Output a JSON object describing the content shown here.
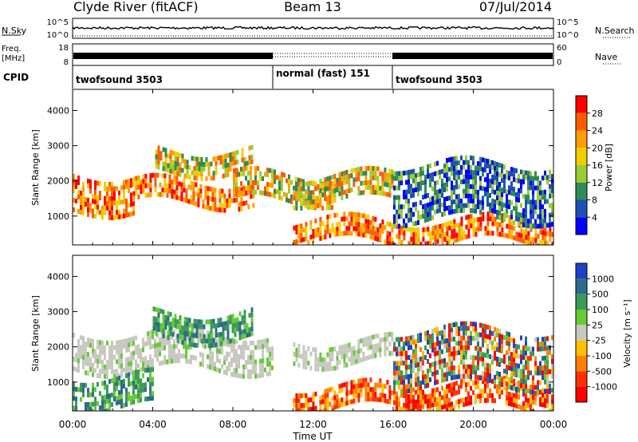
{
  "header": {
    "station": "Clyde River (fitACF)",
    "beam": "Beam 13",
    "date": "07/Jul/2014"
  },
  "strips": {
    "nsky_label": "N.Sky",
    "nsky_ticks": [
      "10^5",
      "10^0"
    ],
    "nsearch_label": "N.Search",
    "nsearch_ticks": [
      "10^5",
      "10^0"
    ],
    "freq_label_1": "Freq.",
    "freq_label_2": "[MHz]",
    "freq_ticks": [
      "18",
      "8"
    ],
    "nave_label": "Nave",
    "nave_ticks": [
      "60",
      "0"
    ],
    "cpid_label": "CPID",
    "cpid_segments": [
      {
        "name": "twofsound 3503",
        "start_h": 0,
        "end_h": 10
      },
      {
        "name": "normal (fast) 151",
        "start_h": 10,
        "end_h": 16
      },
      {
        "name": "twofsound 3503",
        "start_h": 16,
        "end_h": 24
      }
    ]
  },
  "colorbars": {
    "power_label": "Power [dB]",
    "power_ticks": [
      "28",
      "24",
      "20",
      "16",
      "12",
      "8",
      "4"
    ],
    "power_colors": [
      "#ff0000",
      "#ff5a00",
      "#ff9c00",
      "#f2cd00",
      "#9acd32",
      "#2e8b57",
      "#1e50b4",
      "#0000ff"
    ],
    "velocity_label": "Velocity [m s⁻¹]",
    "velocity_ticks": [
      "1000",
      "500",
      "100",
      "25",
      "-25",
      "-100",
      "-500",
      "-1000"
    ],
    "velocity_colors": [
      "#2040c8",
      "#2e6b8f",
      "#3a9a5a",
      "#66cc33",
      "#c8c8c0",
      "#ffc000",
      "#ff8000",
      "#ff3000",
      "#ff0000"
    ]
  },
  "chart_data": [
    {
      "type": "heatmap",
      "title": "",
      "variable": "Power",
      "xlabel": "",
      "ylabel": "Slant Range [km]",
      "xlim_hours": [
        0,
        24
      ],
      "ylim_km": [
        180,
        4600
      ],
      "y_ticks": [
        1000,
        2000,
        3000,
        4000
      ],
      "bands": [
        {
          "t0": 0,
          "t1": 3,
          "r0": 1200,
          "r1": 2200,
          "level": "high"
        },
        {
          "t0": 3,
          "t1": 9,
          "r0": 1400,
          "r1": 2000,
          "level": "high"
        },
        {
          "t0": 4,
          "t1": 9,
          "r0": 2300,
          "r1": 2900,
          "level": "mid"
        },
        {
          "t0": 8,
          "t1": 13,
          "r0": 1500,
          "r1": 2200,
          "level": "mid"
        },
        {
          "t0": 11,
          "t1": 16,
          "r0": 1500,
          "r1": 2200,
          "level": "mid"
        },
        {
          "t0": 11,
          "t1": 24,
          "r0": 300,
          "r1": 900,
          "level": "high"
        },
        {
          "t0": 16,
          "t1": 24,
          "r0": 1000,
          "r1": 2500,
          "level": "low"
        }
      ]
    },
    {
      "type": "heatmap",
      "title": "",
      "variable": "Velocity",
      "xlabel": "Time UT",
      "ylabel": "Slant Range [km]",
      "xlim_hours": [
        0,
        24
      ],
      "ylim_km": [
        180,
        4600
      ],
      "y_ticks": [
        1000,
        2000,
        3000,
        4000
      ],
      "x_tick_labels": [
        "00:00",
        "04:00",
        "08:00",
        "12:00",
        "16:00",
        "20:00",
        "00:00"
      ],
      "bands": [
        {
          "t0": 0,
          "t1": 10,
          "r0": 1400,
          "r1": 2400,
          "level": "near-zero"
        },
        {
          "t0": 0,
          "t1": 4,
          "r0": 300,
          "r1": 1200,
          "level": "positive"
        },
        {
          "t0": 4,
          "t1": 9,
          "r0": 2300,
          "r1": 3000,
          "level": "positive"
        },
        {
          "t0": 11,
          "t1": 16,
          "r0": 1600,
          "r1": 2200,
          "level": "near-zero"
        },
        {
          "t0": 11,
          "t1": 16,
          "r0": 300,
          "r1": 900,
          "level": "negative"
        },
        {
          "t0": 16,
          "t1": 24,
          "r0": 300,
          "r1": 1000,
          "level": "negative"
        },
        {
          "t0": 16,
          "t1": 24,
          "r0": 1000,
          "r1": 2500,
          "level": "mixed"
        }
      ]
    }
  ]
}
